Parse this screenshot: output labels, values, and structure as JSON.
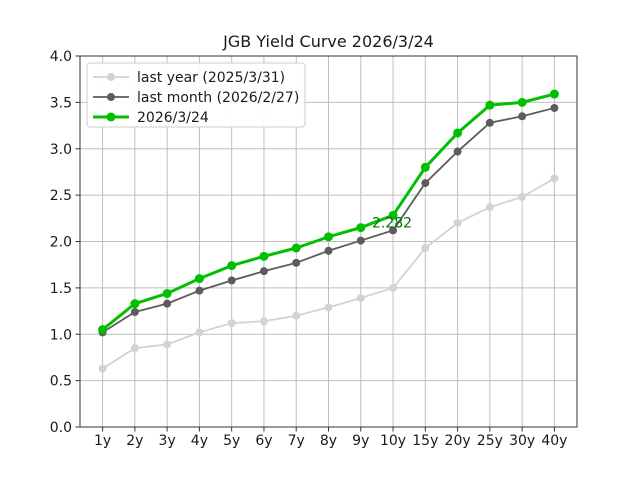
{
  "chart_data": {
    "type": "line",
    "title": "JGB Yield Curve 2026/3/24",
    "xlabel": "",
    "ylabel": "",
    "categories": [
      "1y",
      "2y",
      "3y",
      "4y",
      "5y",
      "6y",
      "7y",
      "8y",
      "9y",
      "10y",
      "15y",
      "20y",
      "25y",
      "30y",
      "40y"
    ],
    "ylim": [
      0.0,
      4.0
    ],
    "ytick_step": 0.5,
    "grid": true,
    "grid_color": "#bfbfbf",
    "legend_position": "upper-left",
    "series": [
      {
        "name": "last year (2025/3/31)",
        "color": "#d3d3d3",
        "linewidth": 1.8,
        "marker": "circle",
        "marker_radius": 4,
        "values": [
          0.63,
          0.85,
          0.89,
          1.02,
          1.12,
          1.14,
          1.2,
          1.29,
          1.39,
          1.5,
          1.93,
          2.2,
          2.37,
          2.48,
          2.68
        ]
      },
      {
        "name": "last month (2026/2/27)",
        "color": "#5c5c5c",
        "linewidth": 1.8,
        "marker": "circle",
        "marker_radius": 4,
        "values": [
          1.02,
          1.24,
          1.33,
          1.47,
          1.58,
          1.68,
          1.77,
          1.9,
          2.01,
          2.12,
          2.63,
          2.97,
          3.28,
          3.35,
          3.44
        ]
      },
      {
        "name": "2026/3/24",
        "color": "#00c000",
        "linewidth": 3,
        "marker": "circle",
        "marker_radius": 4.5,
        "values": [
          1.05,
          1.33,
          1.44,
          1.6,
          1.74,
          1.84,
          1.93,
          2.05,
          2.15,
          2.282,
          2.8,
          3.17,
          3.47,
          3.5,
          3.59
        ]
      }
    ],
    "annotation": {
      "text": "2.282",
      "series": "2026/3/24",
      "category": "10y",
      "value": 2.282,
      "color": "#007000"
    }
  }
}
